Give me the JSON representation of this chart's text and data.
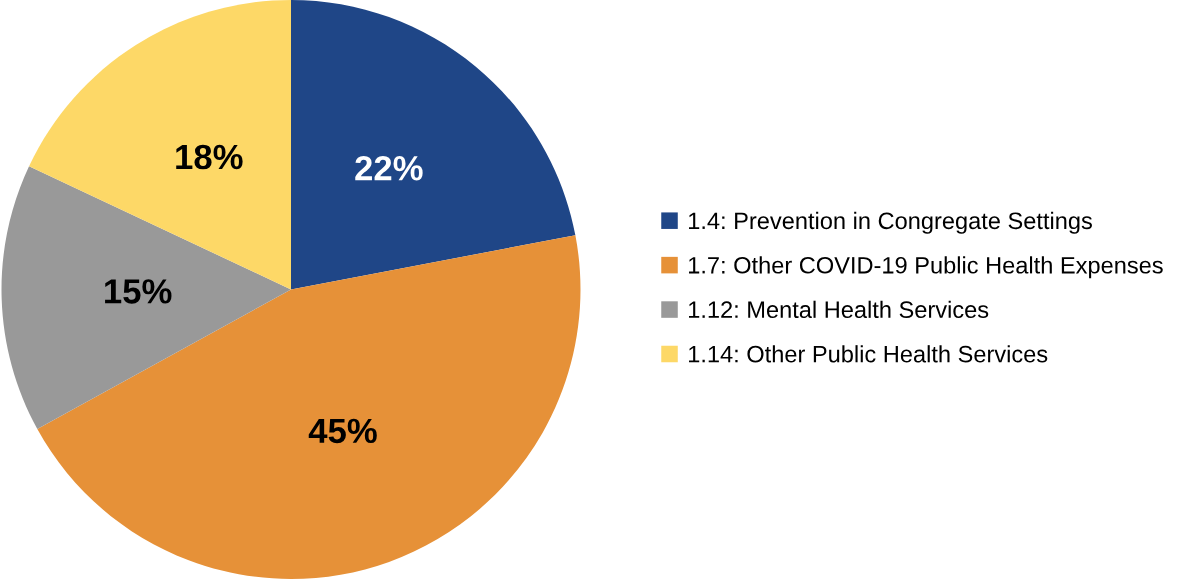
{
  "chart_data": {
    "type": "pie",
    "categories": [
      "1.4: Prevention in Congregate Settings",
      "1.7: Other COVID-19 Public Health Expenses",
      "1.12: Mental Health Services",
      "1.14: Other Public Health Services"
    ],
    "values": [
      22,
      45,
      15,
      18
    ],
    "colors": [
      "#1f4687",
      "#e69138",
      "#999999",
      "#fdd867"
    ],
    "value_labels": [
      "22%",
      "45%",
      "15%",
      "18%"
    ],
    "legend": "right"
  }
}
